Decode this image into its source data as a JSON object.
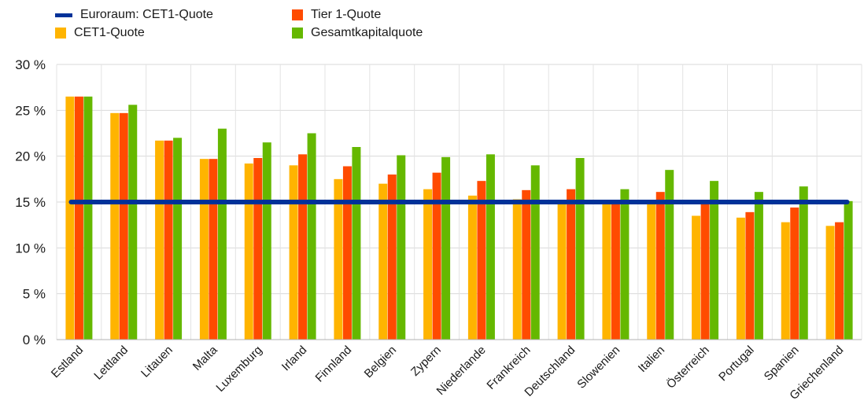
{
  "chart_data": {
    "type": "bar",
    "categories": [
      "Estland",
      "Lettland",
      "Litauen",
      "Malta",
      "Luxemburg",
      "Irland",
      "Finnland",
      "Belgien",
      "Zypern",
      "Niederlande",
      "Frankreich",
      "Deutschland",
      "Slowenien",
      "Italien",
      "Österreich",
      "Portugal",
      "Spanien",
      "Griechenland"
    ],
    "series": [
      {
        "name": "CET1-Quote",
        "color": "#ffb400",
        "values": [
          26.5,
          24.7,
          21.7,
          19.7,
          19.2,
          19.0,
          17.5,
          17.0,
          16.4,
          15.7,
          15.3,
          15.2,
          15.1,
          15.0,
          13.5,
          13.3,
          12.8,
          12.4
        ]
      },
      {
        "name": "Tier 1-Quote",
        "color": "#ff4b00",
        "values": [
          26.5,
          24.7,
          21.7,
          19.7,
          19.8,
          20.2,
          18.9,
          18.0,
          18.2,
          17.3,
          16.3,
          16.4,
          15.2,
          16.1,
          14.8,
          13.9,
          14.4,
          12.8
        ]
      },
      {
        "name": "Gesamtkapitalquote",
        "color": "#65b800",
        "values": [
          26.5,
          25.6,
          22.0,
          23.0,
          21.5,
          22.5,
          21.0,
          20.1,
          19.9,
          20.2,
          19.0,
          19.8,
          16.4,
          18.5,
          17.3,
          16.1,
          16.7,
          15.1
        ]
      }
    ],
    "reference_line": {
      "name": "Euroraum: CET1-Quote",
      "color": "#003299",
      "value": 15.0
    },
    "ylim": [
      0,
      30
    ],
    "yticks": [
      "0 %",
      "5 %",
      "10 %",
      "15 %",
      "20 %",
      "25 %",
      "30 %"
    ],
    "ytick_values": [
      0,
      5,
      10,
      15,
      20,
      25,
      30
    ],
    "grid": true,
    "legend_position": "top-left"
  }
}
